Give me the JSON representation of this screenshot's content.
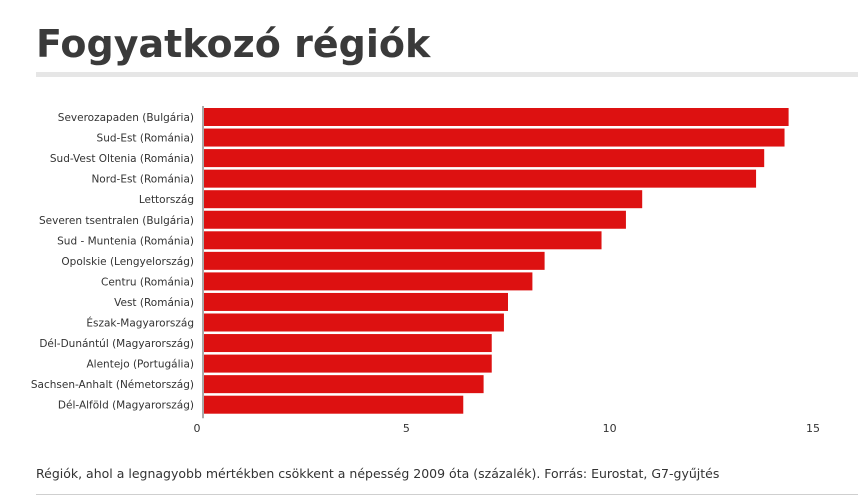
{
  "title": "Fogyatkozó régiók",
  "caption": "Régiók, ahol a legnagyobb mértékben csökkent a népesség 2009 óta (százalék). Forrás: Eurostat, G7-gyűjtés",
  "colors": {
    "bar": "#dd1111",
    "axis": "#555555",
    "title_rule": "#e6e6e6"
  },
  "chart_data": {
    "type": "bar",
    "orientation": "horizontal",
    "categories": [
      "Severozapaden (Bulgária)",
      "Sud-Est (Románia)",
      "Sud-Vest Oltenia (Románia)",
      "Nord-Est (Románia)",
      "Lettország",
      "Severen tsentralen (Bulgária)",
      "Sud - Muntenia (Románia)",
      "Opolskie (Lengyelország)",
      "Centru (Románia)",
      "Vest (Románia)",
      "Észak-Magyarország",
      "Dél-Dunántúl (Magyarország)",
      "Alentejo (Portugália)",
      "Sachsen-Anhalt (Németország)",
      "Dél-Alföld (Magyarország)"
    ],
    "values": [
      14.4,
      14.3,
      13.8,
      13.6,
      10.8,
      10.4,
      9.8,
      8.4,
      8.1,
      7.5,
      7.4,
      7.1,
      7.1,
      6.9,
      6.4
    ],
    "xlim": [
      0,
      15
    ],
    "xticks": [
      0,
      5,
      10,
      15
    ],
    "grid": false
  }
}
